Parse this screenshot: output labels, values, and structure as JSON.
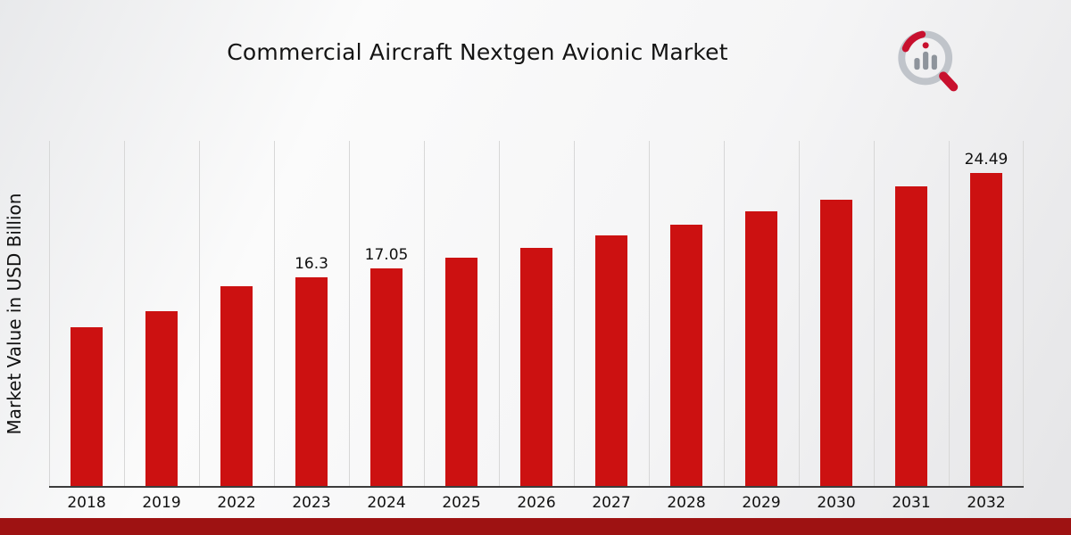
{
  "chart_data": {
    "type": "bar",
    "title": "Commercial Aircraft Nextgen Avionic Market",
    "ylabel": "Market Value in USD Billion",
    "xlabel": "",
    "categories": [
      "2018",
      "2019",
      "2022",
      "2023",
      "2024",
      "2025",
      "2026",
      "2027",
      "2028",
      "2029",
      "2030",
      "2031",
      "2032"
    ],
    "values": [
      12.4,
      13.65,
      15.6,
      16.3,
      17.05,
      17.85,
      18.6,
      19.6,
      20.45,
      21.5,
      22.4,
      23.45,
      24.49
    ],
    "data_labels": {
      "2023": "16.3",
      "2024": "17.05",
      "2032": "24.49"
    },
    "ylim": [
      0,
      27
    ],
    "grid": "vertical-only",
    "legend": "none",
    "bar_color": "#cc1111"
  },
  "branding": {
    "logo_icon": "market-research-magnifier-bars-logo",
    "logo_gray": "#b7bcc3",
    "logo_red": "#c8102e"
  },
  "footer": {
    "band_color": "#9e1212"
  }
}
